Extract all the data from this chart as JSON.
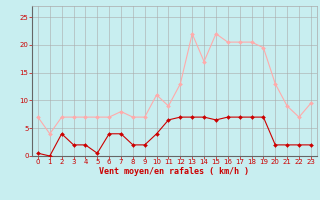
{
  "x": [
    0,
    1,
    2,
    3,
    4,
    5,
    6,
    7,
    8,
    9,
    10,
    11,
    12,
    13,
    14,
    15,
    16,
    17,
    18,
    19,
    20,
    21,
    22,
    23
  ],
  "wind_avg": [
    0.5,
    0,
    4,
    2,
    2,
    0.5,
    4,
    4,
    2,
    2,
    4,
    6.5,
    7,
    7,
    7,
    6.5,
    7,
    7,
    7,
    7,
    2,
    2,
    2,
    2
  ],
  "wind_gust": [
    7,
    4,
    7,
    7,
    7,
    7,
    7,
    8,
    7,
    7,
    11,
    9,
    13,
    22,
    17,
    22,
    20.5,
    20.5,
    20.5,
    19.5,
    13,
    9,
    7,
    9.5
  ],
  "color_avg": "#cc0000",
  "color_gust": "#ffaaaa",
  "background_color": "#c8eef0",
  "grid_color": "#aaaaaa",
  "xlabel": "Vent moyen/en rafales ( km/h )",
  "xlabel_color": "#cc0000",
  "tick_color": "#cc0000",
  "ylim": [
    0,
    27
  ],
  "xlim": [
    -0.5,
    23.5
  ],
  "yticks": [
    0,
    5,
    10,
    15,
    20,
    25
  ],
  "xticks": [
    0,
    1,
    2,
    3,
    4,
    5,
    6,
    7,
    8,
    9,
    10,
    11,
    12,
    13,
    14,
    15,
    16,
    17,
    18,
    19,
    20,
    21,
    22,
    23
  ],
  "marker_size": 2.0,
  "line_width": 0.8,
  "tick_fontsize": 5.0,
  "xlabel_fontsize": 6.0
}
